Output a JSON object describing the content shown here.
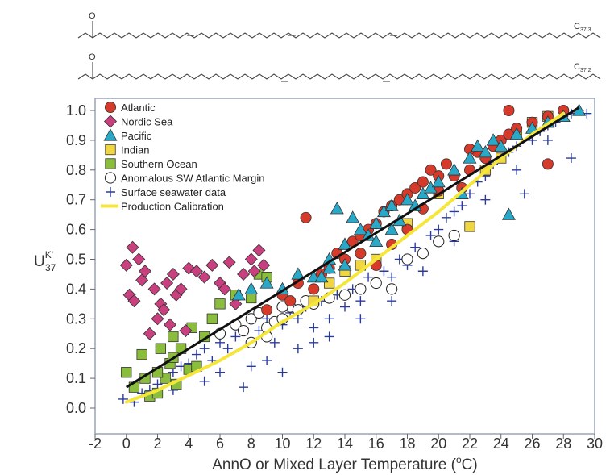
{
  "molecules": {
    "top": {
      "oxygen": "O",
      "label": "C",
      "sub": "37:3"
    },
    "bottom": {
      "oxygen": "O",
      "label": "C",
      "sub": "37:2"
    }
  },
  "chart_data": {
    "type": "scatter",
    "title": "",
    "xlabel": "AnnO or Mixed Layer Temperature (°C)",
    "xlabel_parts": {
      "before": "AnnO or Mixed Layer Temperature (",
      "sup": "o",
      "after": "C)"
    },
    "ylabel": "U^K'_37",
    "ylabel_parts": {
      "base": "U",
      "sup": "K'",
      "sub": "37"
    },
    "xlim": [
      -2,
      30
    ],
    "ylim": [
      0.0,
      1.05
    ],
    "x_ticks": [
      "-2",
      "0",
      "2",
      "4",
      "6",
      "8",
      "10",
      "12",
      "14",
      "16",
      "18",
      "20",
      "22",
      "24",
      "26",
      "28",
      "30"
    ],
    "y_ticks": [
      "0.0",
      "0.1",
      "0.2",
      "0.3",
      "0.4",
      "0.5",
      "0.6",
      "0.7",
      "0.8",
      "0.9",
      "1.0"
    ],
    "grid": false,
    "legend_position": "top-left",
    "series": [
      {
        "name": "Atlantic",
        "marker": "circle",
        "color": "#d63a2a",
        "points": [
          [
            9,
            0.33
          ],
          [
            10,
            0.38
          ],
          [
            10.5,
            0.36
          ],
          [
            11,
            0.42
          ],
          [
            11.5,
            0.64
          ],
          [
            12,
            0.4
          ],
          [
            12.5,
            0.45
          ],
          [
            13,
            0.47
          ],
          [
            13.5,
            0.52
          ],
          [
            14,
            0.5
          ],
          [
            14.5,
            0.56
          ],
          [
            15,
            0.58
          ],
          [
            15.5,
            0.6
          ],
          [
            16,
            0.62
          ],
          [
            16.5,
            0.66
          ],
          [
            17,
            0.68
          ],
          [
            17.5,
            0.7
          ],
          [
            18,
            0.72
          ],
          [
            18.5,
            0.74
          ],
          [
            19,
            0.76
          ],
          [
            19.5,
            0.8
          ],
          [
            20,
            0.78
          ],
          [
            20.5,
            0.82
          ],
          [
            21,
            0.78
          ],
          [
            21.5,
            0.74
          ],
          [
            22,
            0.8
          ],
          [
            22.5,
            0.86
          ],
          [
            23,
            0.84
          ],
          [
            23.5,
            0.88
          ],
          [
            24,
            0.9
          ],
          [
            24.5,
            0.92
          ],
          [
            24.5,
            1.0
          ],
          [
            25,
            0.94
          ],
          [
            26,
            0.96
          ],
          [
            27,
            0.98
          ],
          [
            27,
            0.82
          ],
          [
            28,
            1.0
          ],
          [
            16,
            0.48
          ],
          [
            17,
            0.55
          ],
          [
            18,
            0.6
          ],
          [
            15,
            0.52
          ],
          [
            19,
            0.67
          ],
          [
            20,
            0.73
          ],
          [
            22,
            0.87
          ]
        ]
      },
      {
        "name": "Nordic Sea",
        "marker": "diamond",
        "color": "#c8407e",
        "points": [
          [
            0,
            0.48
          ],
          [
            0.2,
            0.38
          ],
          [
            0.4,
            0.54
          ],
          [
            0.5,
            0.36
          ],
          [
            0.8,
            0.5
          ],
          [
            1,
            0.43
          ],
          [
            1.2,
            0.46
          ],
          [
            1.5,
            0.25
          ],
          [
            1.8,
            0.4
          ],
          [
            2,
            0.3
          ],
          [
            2.2,
            0.35
          ],
          [
            2.4,
            0.33
          ],
          [
            2.6,
            0.42
          ],
          [
            2.8,
            0.28
          ],
          [
            3,
            0.45
          ],
          [
            3.2,
            0.38
          ],
          [
            3.5,
            0.4
          ],
          [
            3.8,
            0.26
          ],
          [
            4,
            0.47
          ],
          [
            4.5,
            0.46
          ],
          [
            5,
            0.44
          ],
          [
            5.5,
            0.48
          ],
          [
            6,
            0.42
          ],
          [
            6.3,
            0.4
          ],
          [
            6.6,
            0.49
          ],
          [
            7,
            0.35
          ],
          [
            7.5,
            0.45
          ],
          [
            8,
            0.5
          ],
          [
            8.2,
            0.46
          ],
          [
            8.5,
            0.53
          ],
          [
            8.8,
            0.48
          ]
        ]
      },
      {
        "name": "Pacific",
        "marker": "triangle",
        "color": "#2aa8c8",
        "points": [
          [
            7.2,
            0.38
          ],
          [
            8,
            0.4
          ],
          [
            9,
            0.42
          ],
          [
            10,
            0.4
          ],
          [
            11,
            0.45
          ],
          [
            12,
            0.44
          ],
          [
            13,
            0.5
          ],
          [
            13.5,
            0.67
          ],
          [
            14,
            0.55
          ],
          [
            14.5,
            0.64
          ],
          [
            15,
            0.6
          ],
          [
            15.5,
            0.58
          ],
          [
            16,
            0.62
          ],
          [
            16.5,
            0.66
          ],
          [
            17,
            0.68
          ],
          [
            17.5,
            0.63
          ],
          [
            18,
            0.7
          ],
          [
            18.5,
            0.68
          ],
          [
            19,
            0.72
          ],
          [
            19.5,
            0.74
          ],
          [
            20,
            0.76
          ],
          [
            21,
            0.8
          ],
          [
            21.5,
            0.72
          ],
          [
            22,
            0.84
          ],
          [
            22.5,
            0.88
          ],
          [
            23,
            0.86
          ],
          [
            23.5,
            0.9
          ],
          [
            24,
            0.88
          ],
          [
            24.5,
            0.65
          ],
          [
            25,
            0.92
          ],
          [
            26,
            0.94
          ],
          [
            27,
            0.96
          ],
          [
            28,
            0.98
          ],
          [
            29,
            1.0
          ],
          [
            12.5,
            0.44
          ],
          [
            13,
            0.47
          ],
          [
            14,
            0.48
          ],
          [
            16,
            0.56
          ],
          [
            17,
            0.6
          ]
        ]
      },
      {
        "name": "Indian",
        "marker": "square",
        "color": "#f0d640",
        "points": [
          [
            12,
            0.36
          ],
          [
            13,
            0.42
          ],
          [
            14,
            0.46
          ],
          [
            15,
            0.48
          ],
          [
            16,
            0.5
          ],
          [
            18,
            0.62
          ],
          [
            20,
            0.72
          ],
          [
            22,
            0.61
          ],
          [
            23,
            0.8
          ],
          [
            24,
            0.84
          ],
          [
            25,
            0.92
          ],
          [
            26,
            0.96
          ],
          [
            27,
            0.98
          ]
        ]
      },
      {
        "name": "Southern Ocean",
        "marker": "square",
        "color": "#8bbd3c",
        "points": [
          [
            0,
            0.12
          ],
          [
            0.5,
            0.07
          ],
          [
            1,
            0.18
          ],
          [
            1.2,
            0.1
          ],
          [
            1.5,
            0.04
          ],
          [
            2,
            0.05
          ],
          [
            2.2,
            0.2
          ],
          [
            2.5,
            0.1
          ],
          [
            2.8,
            0.15
          ],
          [
            3,
            0.24
          ],
          [
            3.2,
            0.08
          ],
          [
            3.5,
            0.2
          ],
          [
            4,
            0.13
          ],
          [
            4.2,
            0.27
          ],
          [
            4.5,
            0.14
          ],
          [
            5,
            0.24
          ],
          [
            5.5,
            0.3
          ],
          [
            6,
            0.35
          ],
          [
            7,
            0.38
          ],
          [
            8,
            0.37
          ],
          [
            8.5,
            0.45
          ],
          [
            9,
            0.44
          ],
          [
            2,
            0.12
          ],
          [
            3,
            0.17
          ]
        ]
      },
      {
        "name": "Anomalous SW Atlantic Margin",
        "marker": "open-circle",
        "color": "#ffffff",
        "points": [
          [
            6,
            0.25
          ],
          [
            7,
            0.28
          ],
          [
            8,
            0.3
          ],
          [
            8.5,
            0.32
          ],
          [
            9,
            0.27
          ],
          [
            9.5,
            0.29
          ],
          [
            10,
            0.3
          ],
          [
            10.5,
            0.34
          ],
          [
            11,
            0.33
          ],
          [
            12,
            0.35
          ],
          [
            13,
            0.37
          ],
          [
            14,
            0.38
          ],
          [
            15,
            0.4
          ],
          [
            16,
            0.42
          ],
          [
            17,
            0.4
          ],
          [
            18,
            0.5
          ],
          [
            19,
            0.52
          ],
          [
            20,
            0.56
          ],
          [
            21,
            0.58
          ],
          [
            8,
            0.22
          ],
          [
            9,
            0.24
          ],
          [
            7.5,
            0.26
          ],
          [
            10,
            0.34
          ],
          [
            11.5,
            0.36
          ]
        ]
      },
      {
        "name": "Surface seawater data",
        "marker": "plus",
        "color": "#2a3a9c",
        "points": [
          [
            -0.2,
            0.03
          ],
          [
            0.5,
            0.02
          ],
          [
            1,
            0.05
          ],
          [
            1.5,
            0.06
          ],
          [
            2,
            0.08
          ],
          [
            2.5,
            0.1
          ],
          [
            3,
            0.12
          ],
          [
            3.5,
            0.14
          ],
          [
            4,
            0.15
          ],
          [
            4.5,
            0.18
          ],
          [
            5,
            0.2
          ],
          [
            5.5,
            0.16
          ],
          [
            6,
            0.22
          ],
          [
            6.5,
            0.2
          ],
          [
            7,
            0.24
          ],
          [
            7.5,
            0.07
          ],
          [
            8,
            0.14
          ],
          [
            8.5,
            0.26
          ],
          [
            9,
            0.3
          ],
          [
            9.5,
            0.22
          ],
          [
            10,
            0.28
          ],
          [
            10.5,
            0.32
          ],
          [
            11,
            0.3
          ],
          [
            11.5,
            0.34
          ],
          [
            12,
            0.27
          ],
          [
            12.5,
            0.36
          ],
          [
            13,
            0.3
          ],
          [
            13.5,
            0.38
          ],
          [
            14,
            0.34
          ],
          [
            14.5,
            0.4
          ],
          [
            15,
            0.36
          ],
          [
            15.5,
            0.44
          ],
          [
            16,
            0.42
          ],
          [
            16.5,
            0.46
          ],
          [
            17,
            0.44
          ],
          [
            17.5,
            0.5
          ],
          [
            18,
            0.48
          ],
          [
            18.5,
            0.54
          ],
          [
            19,
            0.52
          ],
          [
            19.5,
            0.58
          ],
          [
            20,
            0.6
          ],
          [
            20.5,
            0.64
          ],
          [
            21,
            0.66
          ],
          [
            21.5,
            0.68
          ],
          [
            22,
            0.72
          ],
          [
            22.5,
            0.76
          ],
          [
            23,
            0.78
          ],
          [
            23.5,
            0.82
          ],
          [
            24,
            0.84
          ],
          [
            24.5,
            0.86
          ],
          [
            25,
            0.88
          ],
          [
            25.5,
            0.72
          ],
          [
            26,
            0.9
          ],
          [
            26.5,
            0.93
          ],
          [
            27,
            0.95
          ],
          [
            27.5,
            0.96
          ],
          [
            28,
            0.98
          ],
          [
            28.5,
            0.99
          ],
          [
            29,
            1.0
          ],
          [
            29.5,
            0.99
          ],
          [
            4,
            0.26
          ],
          [
            6,
            0.12
          ],
          [
            9,
            0.16
          ],
          [
            11,
            0.2
          ],
          [
            13,
            0.24
          ],
          [
            15,
            0.3
          ],
          [
            17,
            0.36
          ],
          [
            19,
            0.46
          ],
          [
            21,
            0.56
          ],
          [
            23,
            0.7
          ],
          [
            25,
            0.8
          ],
          [
            27,
            0.9
          ],
          [
            28.5,
            0.84
          ],
          [
            3,
            0.06
          ],
          [
            5,
            0.09
          ],
          [
            10,
            0.12
          ],
          [
            12,
            0.22
          ]
        ]
      },
      {
        "name": "Production Calibration",
        "marker": "line",
        "color": "#f5e63a",
        "points": [
          [
            0,
            0.02
          ],
          [
            2,
            0.06
          ],
          [
            4,
            0.11
          ],
          [
            6,
            0.16
          ],
          [
            8,
            0.22
          ],
          [
            10,
            0.29
          ],
          [
            12,
            0.35
          ],
          [
            14,
            0.42
          ],
          [
            16,
            0.5
          ],
          [
            18,
            0.58
          ],
          [
            20,
            0.66
          ],
          [
            22,
            0.75
          ],
          [
            24,
            0.84
          ],
          [
            26,
            0.92
          ],
          [
            28,
            0.99
          ]
        ]
      }
    ],
    "fit_line": {
      "color": "#111111",
      "points": [
        [
          0,
          0.07
        ],
        [
          29,
          1.01
        ]
      ]
    }
  }
}
